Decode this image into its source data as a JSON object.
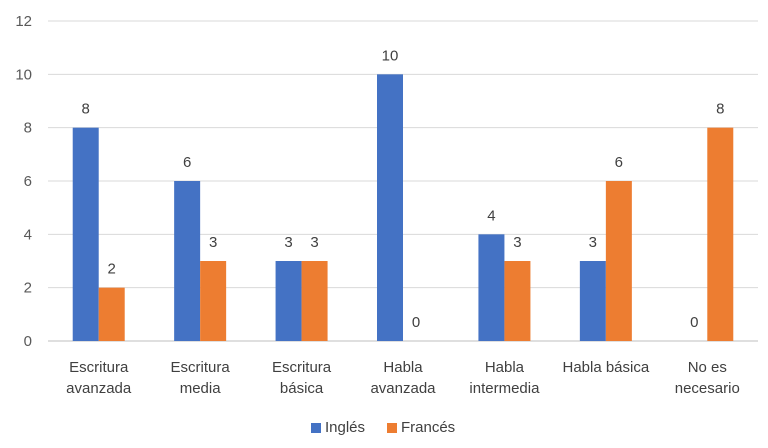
{
  "chart_data": {
    "type": "bar",
    "categories": [
      [
        "Escritura",
        "avanzada"
      ],
      [
        "Escritura",
        "media"
      ],
      [
        "Escritura",
        "básica"
      ],
      [
        "Habla",
        "avanzada"
      ],
      [
        "Habla",
        "intermedia"
      ],
      [
        "Habla básica"
      ],
      [
        "No es",
        "necesario"
      ]
    ],
    "series": [
      {
        "name": "Inglés",
        "color": "#4472c4",
        "values": [
          8,
          6,
          3,
          10,
          4,
          3,
          0
        ]
      },
      {
        "name": "Francés",
        "color": "#ed7d31",
        "values": [
          2,
          3,
          3,
          0,
          3,
          6,
          8
        ]
      }
    ],
    "ylim": [
      0,
      12
    ],
    "yticks": [
      0,
      2,
      4,
      6,
      8,
      10,
      12
    ],
    "grid": true,
    "data_labels": true,
    "legend": "bottom-center",
    "title": "",
    "xlabel": "",
    "ylabel": ""
  }
}
